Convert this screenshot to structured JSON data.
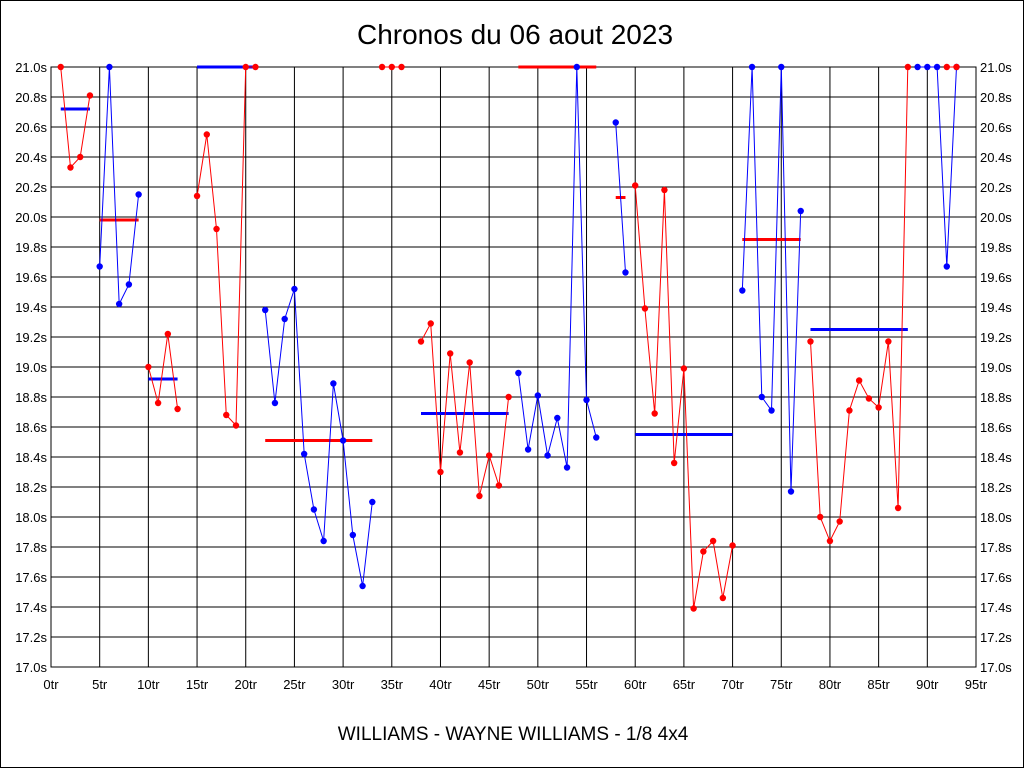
{
  "chart_data": {
    "type": "line",
    "title": "Chronos du 06 aout 2023",
    "subtitle": "WILLIAMS - WAYNE WILLIAMS - 1/8 4x4",
    "xlabel": "",
    "ylabel": "",
    "xlim": [
      0,
      95
    ],
    "ylim": [
      17.0,
      21.0
    ],
    "grid": true,
    "x_ticks": [
      "0tr",
      "5tr",
      "10tr",
      "15tr",
      "20tr",
      "25tr",
      "30tr",
      "35tr",
      "40tr",
      "45tr",
      "50tr",
      "55tr",
      "60tr",
      "65tr",
      "70tr",
      "75tr",
      "80tr",
      "85tr",
      "90tr",
      "95tr"
    ],
    "y_ticks": [
      "17.0s",
      "17.2s",
      "17.4s",
      "17.6s",
      "17.8s",
      "18.0s",
      "18.2s",
      "18.4s",
      "18.6s",
      "18.8s",
      "19.0s",
      "19.2s",
      "19.4s",
      "19.6s",
      "19.8s",
      "20.0s",
      "20.2s",
      "20.4s",
      "20.6s",
      "20.8s",
      "21.0s"
    ],
    "series": [
      {
        "color": "#ff0000",
        "points": [
          [
            1,
            21.0
          ],
          [
            2,
            20.33
          ],
          [
            3,
            20.4
          ],
          [
            4,
            20.81
          ]
        ]
      },
      {
        "color": "#0000ff",
        "points": [
          [
            5,
            19.67
          ],
          [
            6,
            21.0
          ],
          [
            7,
            19.42
          ],
          [
            8,
            19.55
          ],
          [
            9,
            20.15
          ]
        ]
      },
      {
        "color": "#ff0000",
        "points": [
          [
            10,
            19.0
          ],
          [
            11,
            18.76
          ],
          [
            12,
            19.22
          ],
          [
            13,
            18.72
          ]
        ]
      },
      {
        "color": "#ff0000",
        "points": [
          [
            15,
            20.14
          ],
          [
            16,
            20.55
          ],
          [
            17,
            19.92
          ],
          [
            18,
            18.68
          ],
          [
            19,
            18.61
          ],
          [
            20,
            21.0
          ],
          [
            21,
            21.0
          ]
        ]
      },
      {
        "color": "#0000ff",
        "points": [
          [
            22,
            19.38
          ],
          [
            23,
            18.76
          ],
          [
            24,
            19.32
          ],
          [
            25,
            19.52
          ],
          [
            26,
            18.42
          ],
          [
            27,
            18.05
          ],
          [
            28,
            17.84
          ],
          [
            29,
            18.89
          ],
          [
            30,
            18.51
          ],
          [
            31,
            17.88
          ],
          [
            32,
            17.54
          ],
          [
            33,
            18.1
          ]
        ]
      },
      {
        "color": "#ff0000",
        "points": [
          [
            34,
            21.0
          ],
          [
            35,
            21.0
          ],
          [
            36,
            21.0
          ]
        ]
      },
      {
        "color": "#ff0000",
        "points": [
          [
            38,
            19.17
          ],
          [
            39,
            19.29
          ],
          [
            40,
            18.3
          ],
          [
            41,
            19.09
          ],
          [
            42,
            18.43
          ],
          [
            43,
            19.03
          ],
          [
            44,
            18.14
          ],
          [
            45,
            18.41
          ],
          [
            46,
            18.21
          ],
          [
            47,
            18.8
          ]
        ]
      },
      {
        "color": "#0000ff",
        "points": [
          [
            48,
            18.96
          ],
          [
            49,
            18.45
          ],
          [
            50,
            18.81
          ],
          [
            51,
            18.41
          ],
          [
            52,
            18.66
          ],
          [
            53,
            18.33
          ],
          [
            54,
            21.0
          ],
          [
            55,
            18.78
          ],
          [
            56,
            18.53
          ]
        ]
      },
      {
        "color": "#0000ff",
        "points": [
          [
            58,
            20.63
          ],
          [
            59,
            19.63
          ]
        ]
      },
      {
        "color": "#ff0000",
        "points": [
          [
            60,
            20.21
          ],
          [
            61,
            19.39
          ],
          [
            62,
            18.69
          ],
          [
            63,
            20.18
          ],
          [
            64,
            18.36
          ],
          [
            65,
            18.99
          ],
          [
            66,
            17.39
          ],
          [
            67,
            17.77
          ],
          [
            68,
            17.84
          ],
          [
            69,
            17.46
          ],
          [
            70,
            17.81
          ]
        ]
      },
      {
        "color": "#0000ff",
        "points": [
          [
            71,
            19.51
          ],
          [
            72,
            21.0
          ],
          [
            73,
            18.8
          ],
          [
            74,
            18.71
          ],
          [
            75,
            21.0
          ],
          [
            76,
            18.17
          ],
          [
            77,
            20.04
          ]
        ]
      },
      {
        "color": "#ff0000",
        "points": [
          [
            78,
            19.17
          ],
          [
            79,
            18.0
          ],
          [
            80,
            17.84
          ],
          [
            81,
            17.97
          ],
          [
            82,
            18.71
          ],
          [
            83,
            18.91
          ],
          [
            84,
            18.79
          ],
          [
            85,
            18.73
          ],
          [
            86,
            19.17
          ],
          [
            87,
            18.06
          ],
          [
            88,
            21.0
          ]
        ]
      },
      {
        "color": "#0000ff",
        "points": [
          [
            89,
            21.0
          ],
          [
            90,
            21.0
          ],
          [
            91,
            21.0
          ],
          [
            92,
            19.67
          ],
          [
            93,
            21.0
          ]
        ]
      },
      {
        "color": "#ff0000",
        "points": [
          [
            92,
            21.0
          ],
          [
            93,
            21.0
          ]
        ]
      }
    ],
    "averages": [
      {
        "color": "#0000ff",
        "x": [
          1,
          4
        ],
        "y": 20.72
      },
      {
        "color": "#ff0000",
        "x": [
          5,
          9
        ],
        "y": 19.98
      },
      {
        "color": "#0000ff",
        "x": [
          10,
          13
        ],
        "y": 18.92
      },
      {
        "color": "#0000ff",
        "x": [
          15,
          21
        ],
        "y": 21.0
      },
      {
        "color": "#ff0000",
        "x": [
          22,
          33
        ],
        "y": 18.51
      },
      {
        "color": "#0000ff",
        "x": [
          38,
          47
        ],
        "y": 18.69
      },
      {
        "color": "#ff0000",
        "x": [
          48,
          56
        ],
        "y": 21.0
      },
      {
        "color": "#ff0000",
        "x": [
          58,
          59
        ],
        "y": 20.13
      },
      {
        "color": "#0000ff",
        "x": [
          60,
          70
        ],
        "y": 18.55
      },
      {
        "color": "#ff0000",
        "x": [
          71,
          77
        ],
        "y": 19.85
      },
      {
        "color": "#0000ff",
        "x": [
          78,
          88
        ],
        "y": 19.25
      }
    ]
  }
}
